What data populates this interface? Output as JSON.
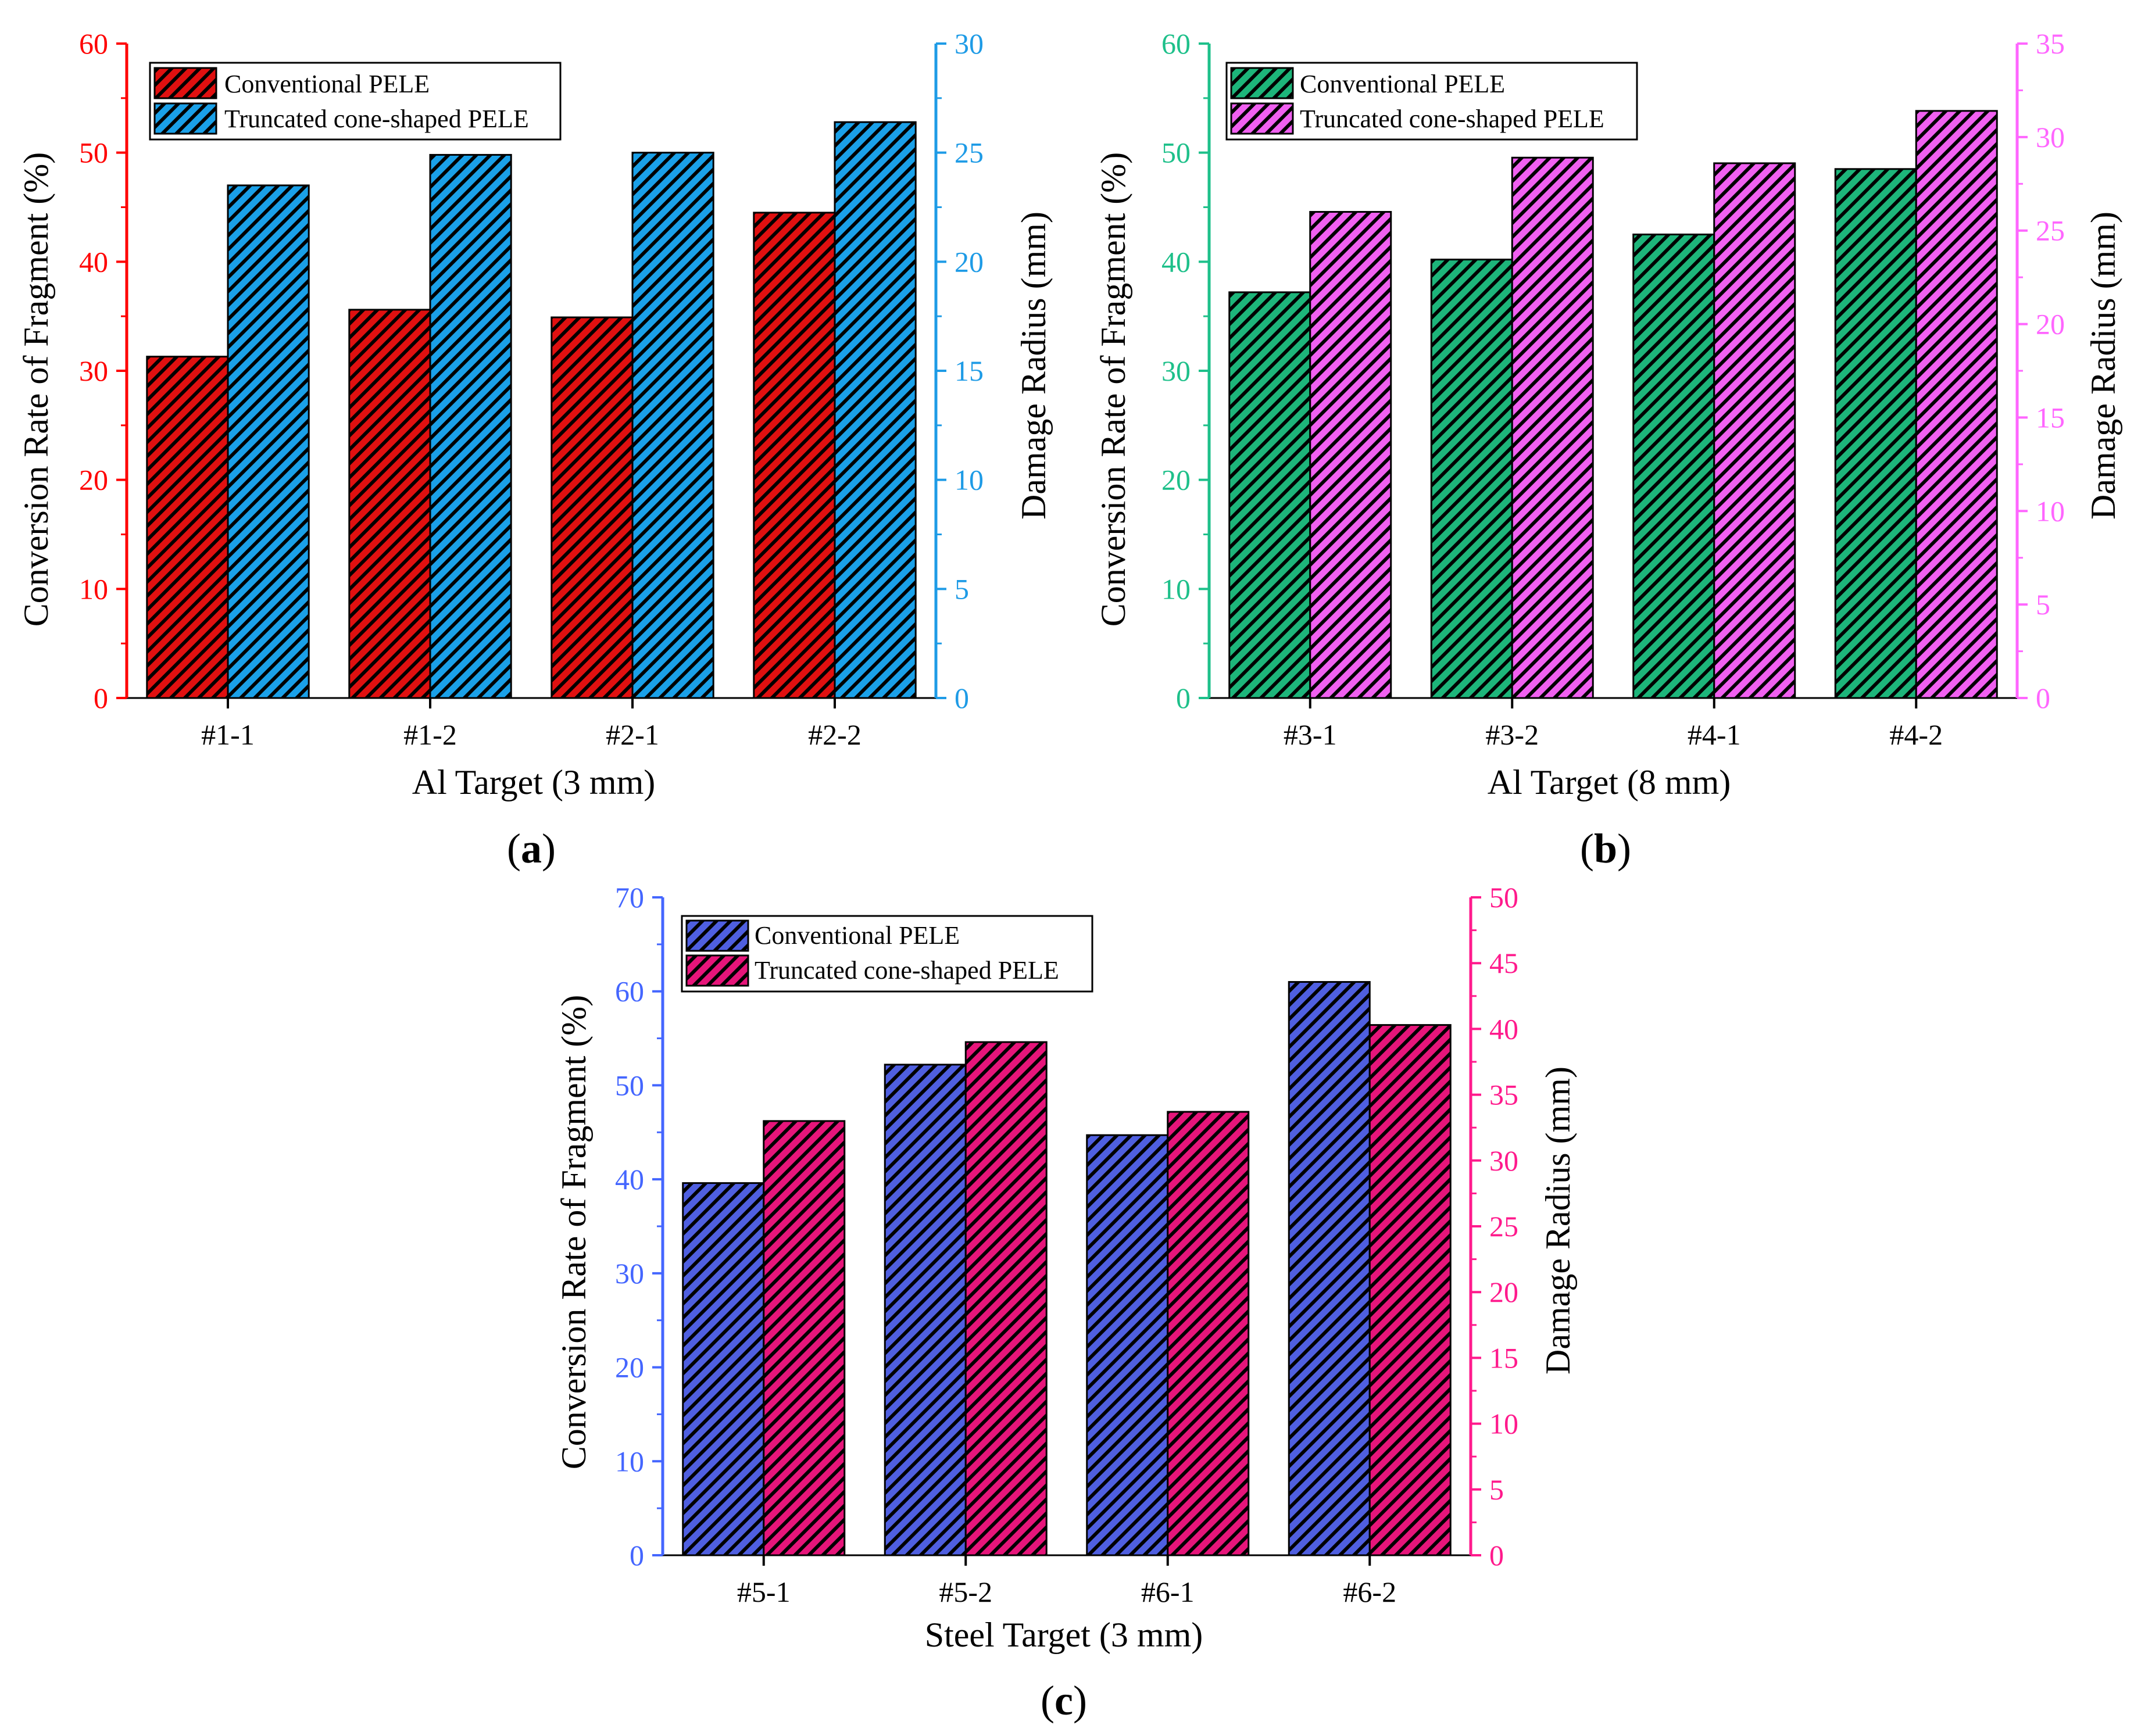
{
  "chart_data": [
    {
      "type": "bar",
      "panel": "a",
      "panel_label": "a",
      "xlabel": "Al Target (3 mm)",
      "ylabel_left": "Conversion Rate of Fragment (%)",
      "ylabel_right": "Damage Radius (mm)",
      "categories": [
        "#1-1",
        "#1-2",
        "#2-1",
        "#2-2"
      ],
      "ylim_left": [
        0,
        60
      ],
      "ylim_right": [
        0,
        30
      ],
      "yticks_left": [
        0,
        10,
        20,
        30,
        40,
        50,
        60
      ],
      "yticks_right": [
        0,
        5,
        10,
        15,
        20,
        25,
        30
      ],
      "left_axis_color": "#ff0000",
      "right_axis_color": "#1e9be6",
      "series": [
        {
          "name": "Conventional PELE",
          "axis": "left",
          "color": "#e01010",
          "values": [
            31.3,
            35.6,
            34.9,
            44.5
          ]
        },
        {
          "name": "Truncated cone-shaped PELE",
          "axis": "right",
          "color": "#1aa0e8",
          "values": [
            23.5,
            24.9,
            25.0,
            26.4
          ]
        }
      ],
      "legend": "top-left"
    },
    {
      "type": "bar",
      "panel": "b",
      "panel_label": "b",
      "xlabel": "Al Target (8 mm)",
      "ylabel_left": "Conversion Rate of Fragment (%)",
      "ylabel_right": "Damage Radius (mm)",
      "categories": [
        "#3-1",
        "#3-2",
        "#4-1",
        "#4-2"
      ],
      "ylim_left": [
        0,
        60
      ],
      "ylim_right": [
        0,
        35
      ],
      "yticks_left": [
        0,
        10,
        20,
        30,
        40,
        50,
        60
      ],
      "yticks_right": [
        0,
        5,
        10,
        15,
        20,
        25,
        30,
        35
      ],
      "left_axis_color": "#1ec08a",
      "right_axis_color": "#ff66ff",
      "series": [
        {
          "name": "Conventional PELE",
          "axis": "left",
          "color": "#1db57a",
          "values": [
            37.2,
            40.2,
            42.5,
            48.5
          ]
        },
        {
          "name": "Truncated cone-shaped PELE",
          "axis": "right",
          "color": "#f060f0",
          "values": [
            26.0,
            28.9,
            28.6,
            31.4
          ]
        }
      ],
      "legend": "top-left"
    },
    {
      "type": "bar",
      "panel": "c",
      "panel_label": "c",
      "xlabel": "Steel Target (3 mm)",
      "ylabel_left": "Conversion Rate of Fragment (%)",
      "ylabel_right": "Damage Radius (mm)",
      "categories": [
        "#5-1",
        "#5-2",
        "#6-1",
        "#6-2"
      ],
      "ylim_left": [
        0,
        70
      ],
      "ylim_right": [
        0,
        50
      ],
      "yticks_left": [
        0,
        10,
        20,
        30,
        40,
        50,
        60,
        70
      ],
      "yticks_right": [
        0,
        5,
        10,
        15,
        20,
        25,
        30,
        35,
        40,
        45,
        50
      ],
      "left_axis_color": "#4466ff",
      "right_axis_color": "#ff1a8c",
      "series": [
        {
          "name": "Conventional PELE",
          "axis": "left",
          "color": "#4f5fe0",
          "values": [
            39.6,
            52.2,
            44.7,
            61.0
          ]
        },
        {
          "name": "Truncated cone-shaped PELE",
          "axis": "right",
          "color": "#e6157a",
          "values": [
            33.0,
            39.0,
            33.7,
            40.3
          ]
        }
      ],
      "legend": "top-left"
    }
  ]
}
